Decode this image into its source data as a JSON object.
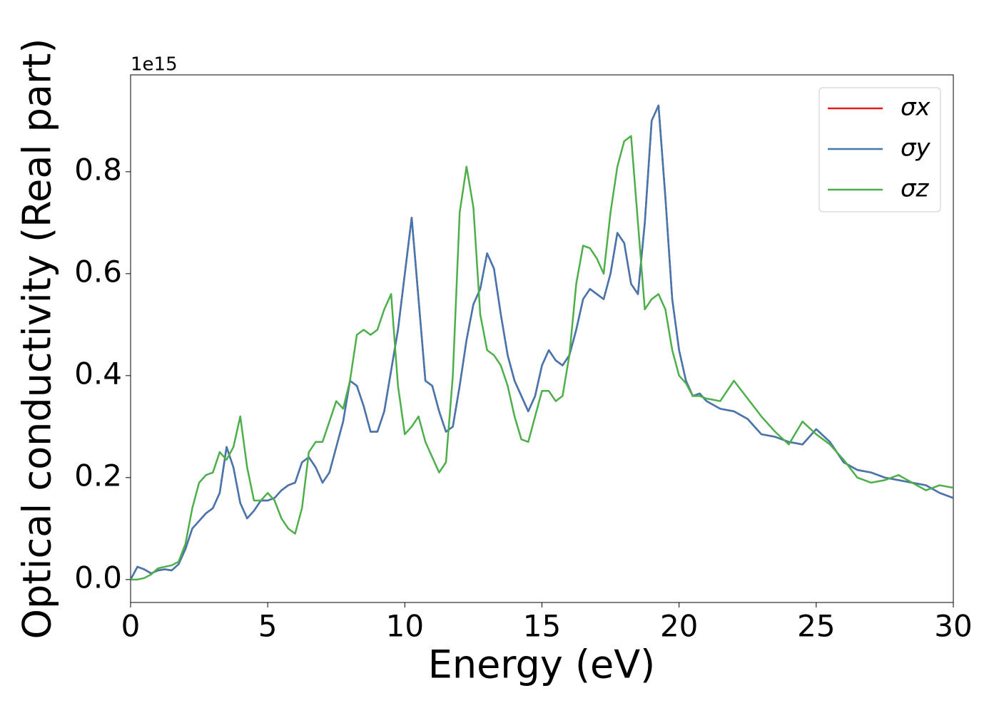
{
  "chart_data": {
    "type": "line",
    "xlabel": "Energy (eV)",
    "ylabel": "Optical conductivity (Real part)",
    "offset_label": "1e15",
    "x": [
      0,
      0.25,
      0.5,
      0.75,
      1,
      1.25,
      1.5,
      1.75,
      2,
      2.25,
      2.5,
      2.75,
      3,
      3.25,
      3.5,
      3.75,
      4,
      4.25,
      4.5,
      4.75,
      5,
      5.25,
      5.5,
      5.75,
      6,
      6.25,
      6.5,
      6.75,
      7,
      7.25,
      7.5,
      7.75,
      8,
      8.25,
      8.5,
      8.75,
      9,
      9.25,
      9.5,
      9.75,
      10,
      10.25,
      10.5,
      10.75,
      11,
      11.25,
      11.5,
      11.75,
      12,
      12.25,
      12.5,
      12.75,
      13,
      13.25,
      13.5,
      13.75,
      14,
      14.25,
      14.5,
      14.75,
      15,
      15.25,
      15.5,
      15.75,
      16,
      16.25,
      16.5,
      16.75,
      17,
      17.25,
      17.5,
      17.75,
      18,
      18.25,
      18.5,
      18.75,
      19,
      19.25,
      19.5,
      19.75,
      20,
      20.25,
      20.5,
      20.75,
      21,
      21.5,
      22,
      22.5,
      23,
      23.5,
      24,
      24.5,
      25,
      25.5,
      26,
      26.5,
      27,
      27.5,
      28,
      28.5,
      29,
      29.5,
      30
    ],
    "series": [
      {
        "name": "σx",
        "color": "#e41a1c",
        "values": [
          0,
          0.025,
          0.02,
          0.012,
          0.018,
          0.02,
          0.018,
          0.03,
          0.06,
          0.1,
          0.115,
          0.13,
          0.14,
          0.17,
          0.26,
          0.22,
          0.15,
          0.12,
          0.135,
          0.155,
          0.155,
          0.16,
          0.175,
          0.185,
          0.19,
          0.23,
          0.24,
          0.22,
          0.19,
          0.21,
          0.26,
          0.31,
          0.39,
          0.38,
          0.34,
          0.29,
          0.29,
          0.33,
          0.41,
          0.49,
          0.6,
          0.71,
          0.55,
          0.39,
          0.38,
          0.33,
          0.29,
          0.3,
          0.38,
          0.47,
          0.54,
          0.57,
          0.64,
          0.61,
          0.52,
          0.44,
          0.39,
          0.36,
          0.33,
          0.36,
          0.42,
          0.45,
          0.43,
          0.42,
          0.44,
          0.49,
          0.55,
          0.57,
          0.56,
          0.55,
          0.6,
          0.68,
          0.66,
          0.58,
          0.56,
          0.7,
          0.9,
          0.93,
          0.75,
          0.55,
          0.45,
          0.39,
          0.36,
          0.365,
          0.35,
          0.335,
          0.33,
          0.315,
          0.285,
          0.28,
          0.27,
          0.265,
          0.295,
          0.27,
          0.23,
          0.215,
          0.21,
          0.2,
          0.195,
          0.19,
          0.185,
          0.17,
          0.16
        ]
      },
      {
        "name": "σy",
        "color": "#4277b0",
        "values": [
          0,
          0.025,
          0.02,
          0.012,
          0.018,
          0.02,
          0.018,
          0.03,
          0.06,
          0.1,
          0.115,
          0.13,
          0.14,
          0.17,
          0.26,
          0.22,
          0.15,
          0.12,
          0.135,
          0.155,
          0.155,
          0.16,
          0.175,
          0.185,
          0.19,
          0.23,
          0.24,
          0.22,
          0.19,
          0.21,
          0.26,
          0.31,
          0.39,
          0.38,
          0.34,
          0.29,
          0.29,
          0.33,
          0.41,
          0.49,
          0.6,
          0.71,
          0.55,
          0.39,
          0.38,
          0.33,
          0.29,
          0.3,
          0.38,
          0.47,
          0.54,
          0.57,
          0.64,
          0.61,
          0.52,
          0.44,
          0.39,
          0.36,
          0.33,
          0.36,
          0.42,
          0.45,
          0.43,
          0.42,
          0.44,
          0.49,
          0.55,
          0.57,
          0.56,
          0.55,
          0.6,
          0.68,
          0.66,
          0.58,
          0.56,
          0.7,
          0.9,
          0.93,
          0.75,
          0.55,
          0.45,
          0.39,
          0.36,
          0.365,
          0.35,
          0.335,
          0.33,
          0.315,
          0.285,
          0.28,
          0.27,
          0.265,
          0.295,
          0.27,
          0.23,
          0.215,
          0.21,
          0.2,
          0.195,
          0.19,
          0.185,
          0.17,
          0.16
        ]
      },
      {
        "name": "σz",
        "color": "#4daf4a",
        "values": [
          0,
          0,
          0.003,
          0.01,
          0.022,
          0.025,
          0.028,
          0.035,
          0.07,
          0.14,
          0.19,
          0.205,
          0.21,
          0.25,
          0.235,
          0.26,
          0.32,
          0.22,
          0.155,
          0.155,
          0.17,
          0.155,
          0.12,
          0.1,
          0.09,
          0.14,
          0.25,
          0.27,
          0.27,
          0.31,
          0.35,
          0.335,
          0.39,
          0.48,
          0.49,
          0.48,
          0.49,
          0.53,
          0.56,
          0.38,
          0.285,
          0.3,
          0.32,
          0.27,
          0.24,
          0.21,
          0.23,
          0.4,
          0.72,
          0.81,
          0.73,
          0.52,
          0.45,
          0.44,
          0.42,
          0.38,
          0.32,
          0.275,
          0.27,
          0.32,
          0.37,
          0.37,
          0.35,
          0.36,
          0.44,
          0.58,
          0.655,
          0.65,
          0.63,
          0.6,
          0.72,
          0.81,
          0.86,
          0.87,
          0.7,
          0.53,
          0.55,
          0.56,
          0.53,
          0.45,
          0.4,
          0.385,
          0.36,
          0.36,
          0.355,
          0.35,
          0.39,
          0.355,
          0.32,
          0.29,
          0.265,
          0.31,
          0.285,
          0.265,
          0.235,
          0.2,
          0.19,
          0.195,
          0.205,
          0.19,
          0.175,
          0.185,
          0.18
        ]
      }
    ],
    "xlim": [
      0,
      30
    ],
    "xticks": [
      0,
      5,
      10,
      15,
      20,
      25,
      30
    ],
    "ylim": [
      -0.045,
      0.99
    ],
    "yticks": [
      {
        "value": 0,
        "label": "0.0"
      },
      0.2,
      0.4,
      0.6,
      0.8
    ],
    "grid": false,
    "legend": "upper right"
  }
}
